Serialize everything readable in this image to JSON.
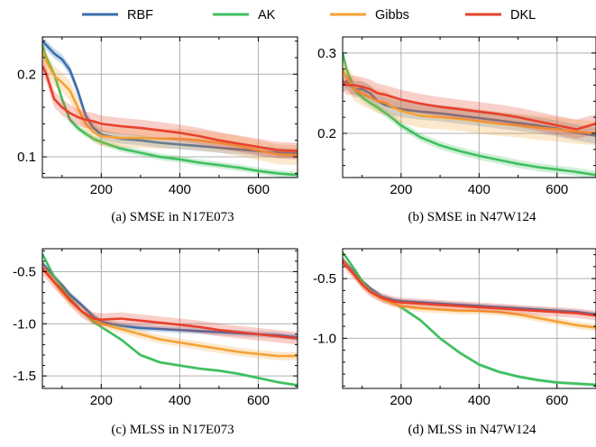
{
  "legend": [
    {
      "name": "RBF",
      "color": "#3b6fae"
    },
    {
      "name": "AK",
      "color": "#3fbf5f"
    },
    {
      "name": "Gibbs",
      "color": "#f5a235"
    },
    {
      "name": "DKL",
      "color": "#e8412c"
    }
  ],
  "chart_data": [
    {
      "type": "line",
      "caption": "(a) SMSE in N17E073",
      "xlim": [
        50,
        700
      ],
      "ylim": [
        0.075,
        0.245
      ],
      "xticks": [
        200,
        400,
        600
      ],
      "yticks": [
        0.1,
        0.2
      ],
      "ytick_labels": [
        "0.1",
        "0.2"
      ],
      "grid": true,
      "series": [
        {
          "name": "RBF",
          "x": [
            50,
            60,
            80,
            100,
            120,
            140,
            160,
            180,
            200,
            250,
            300,
            350,
            400,
            450,
            500,
            550,
            600,
            650,
            700
          ],
          "y": [
            0.24,
            0.235,
            0.225,
            0.218,
            0.205,
            0.18,
            0.15,
            0.135,
            0.127,
            0.122,
            0.12,
            0.117,
            0.115,
            0.113,
            0.111,
            0.109,
            0.107,
            0.105,
            0.104
          ],
          "band": 0.006
        },
        {
          "name": "AK",
          "x": [
            50,
            60,
            80,
            100,
            120,
            140,
            160,
            180,
            200,
            250,
            300,
            350,
            400,
            450,
            500,
            550,
            600,
            650,
            700
          ],
          "y": [
            0.235,
            0.22,
            0.2,
            0.17,
            0.145,
            0.135,
            0.128,
            0.122,
            0.118,
            0.11,
            0.105,
            0.1,
            0.097,
            0.093,
            0.09,
            0.087,
            0.083,
            0.08,
            0.078
          ],
          "band": 0.004
        },
        {
          "name": "Gibbs",
          "x": [
            50,
            60,
            80,
            100,
            120,
            140,
            160,
            180,
            200,
            250,
            300,
            350,
            400,
            450,
            500,
            550,
            600,
            650,
            700
          ],
          "y": [
            0.228,
            0.215,
            0.198,
            0.19,
            0.18,
            0.16,
            0.14,
            0.13,
            0.125,
            0.123,
            0.123,
            0.122,
            0.122,
            0.12,
            0.117,
            0.113,
            0.108,
            0.103,
            0.102
          ],
          "band": 0.012
        },
        {
          "name": "DKL",
          "x": [
            50,
            60,
            80,
            100,
            120,
            140,
            160,
            180,
            200,
            250,
            300,
            350,
            400,
            450,
            500,
            550,
            600,
            650,
            700
          ],
          "y": [
            0.21,
            0.2,
            0.17,
            0.16,
            0.153,
            0.148,
            0.145,
            0.143,
            0.14,
            0.137,
            0.135,
            0.132,
            0.129,
            0.125,
            0.12,
            0.116,
            0.112,
            0.108,
            0.107
          ],
          "band": 0.01
        }
      ]
    },
    {
      "type": "line",
      "caption": "(b) SMSE in N47W124",
      "xlim": [
        50,
        700
      ],
      "ylim": [
        0.145,
        0.32
      ],
      "xticks": [
        200,
        400,
        600
      ],
      "yticks": [
        0.2,
        0.3
      ],
      "ytick_labels": [
        "0.2",
        "0.3"
      ],
      "grid": true,
      "series": [
        {
          "name": "RBF",
          "x": [
            50,
            60,
            80,
            100,
            120,
            140,
            160,
            180,
            200,
            250,
            300,
            350,
            400,
            450,
            500,
            550,
            600,
            650,
            700
          ],
          "y": [
            0.26,
            0.265,
            0.255,
            0.255,
            0.25,
            0.24,
            0.235,
            0.232,
            0.23,
            0.227,
            0.225,
            0.222,
            0.219,
            0.216,
            0.213,
            0.21,
            0.206,
            0.201,
            0.197
          ],
          "band": 0.01
        },
        {
          "name": "AK",
          "x": [
            50,
            60,
            80,
            100,
            120,
            140,
            160,
            180,
            200,
            250,
            300,
            350,
            400,
            450,
            500,
            550,
            600,
            650,
            700
          ],
          "y": [
            0.3,
            0.28,
            0.255,
            0.245,
            0.238,
            0.232,
            0.225,
            0.218,
            0.21,
            0.195,
            0.185,
            0.178,
            0.172,
            0.167,
            0.162,
            0.158,
            0.155,
            0.152,
            0.148
          ],
          "band": 0.005
        },
        {
          "name": "Gibbs",
          "x": [
            50,
            60,
            80,
            100,
            120,
            140,
            160,
            180,
            200,
            250,
            300,
            350,
            400,
            450,
            500,
            550,
            600,
            650,
            700
          ],
          "y": [
            0.28,
            0.27,
            0.255,
            0.25,
            0.245,
            0.24,
            0.238,
            0.232,
            0.228,
            0.222,
            0.22,
            0.218,
            0.215,
            0.212,
            0.21,
            0.207,
            0.205,
            0.202,
            0.2
          ],
          "band": 0.015
        },
        {
          "name": "DKL",
          "x": [
            50,
            60,
            80,
            100,
            120,
            140,
            160,
            180,
            200,
            250,
            300,
            350,
            400,
            450,
            500,
            550,
            600,
            650,
            700
          ],
          "y": [
            0.265,
            0.26,
            0.26,
            0.258,
            0.255,
            0.25,
            0.248,
            0.245,
            0.242,
            0.237,
            0.233,
            0.23,
            0.227,
            0.224,
            0.22,
            0.215,
            0.21,
            0.205,
            0.212
          ],
          "band": 0.012
        }
      ]
    },
    {
      "type": "line",
      "caption": "(c) MLSS in N17E073",
      "xlim": [
        50,
        700
      ],
      "ylim": [
        -1.62,
        -0.28
      ],
      "xticks": [
        200,
        400,
        600
      ],
      "yticks": [
        -0.5,
        -1.0,
        -1.5
      ],
      "ytick_labels": [
        "-0.5",
        "-1.0",
        "-1.5"
      ],
      "grid": true,
      "series": [
        {
          "name": "RBF",
          "x": [
            50,
            80,
            100,
            120,
            150,
            180,
            200,
            250,
            300,
            350,
            400,
            450,
            500,
            550,
            600,
            650,
            700
          ],
          "y": [
            -0.42,
            -0.55,
            -0.63,
            -0.72,
            -0.82,
            -0.93,
            -0.98,
            -1.02,
            -1.04,
            -1.05,
            -1.06,
            -1.07,
            -1.08,
            -1.09,
            -1.1,
            -1.11,
            -1.13
          ],
          "band": 0.03
        },
        {
          "name": "AK",
          "x": [
            50,
            80,
            100,
            120,
            150,
            180,
            200,
            250,
            300,
            350,
            400,
            450,
            500,
            550,
            600,
            650,
            700
          ],
          "y": [
            -0.33,
            -0.55,
            -0.65,
            -0.75,
            -0.88,
            -0.98,
            -1.03,
            -1.15,
            -1.3,
            -1.37,
            -1.4,
            -1.43,
            -1.45,
            -1.48,
            -1.52,
            -1.56,
            -1.59
          ],
          "band": 0.015
        },
        {
          "name": "Gibbs",
          "x": [
            50,
            80,
            100,
            120,
            150,
            180,
            200,
            250,
            300,
            350,
            400,
            450,
            500,
            550,
            600,
            650,
            700
          ],
          "y": [
            -0.45,
            -0.6,
            -0.7,
            -0.78,
            -0.88,
            -0.96,
            -1.0,
            -1.05,
            -1.1,
            -1.15,
            -1.18,
            -1.21,
            -1.24,
            -1.27,
            -1.29,
            -1.31,
            -1.31
          ],
          "band": 0.04
        },
        {
          "name": "DKL",
          "x": [
            50,
            80,
            100,
            120,
            150,
            180,
            200,
            250,
            300,
            350,
            400,
            450,
            500,
            550,
            600,
            650,
            700
          ],
          "y": [
            -0.47,
            -0.6,
            -0.68,
            -0.77,
            -0.88,
            -0.95,
            -0.96,
            -0.95,
            -0.97,
            -0.99,
            -1.01,
            -1.03,
            -1.06,
            -1.08,
            -1.1,
            -1.12,
            -1.14
          ],
          "band": 0.06
        }
      ]
    },
    {
      "type": "line",
      "caption": "(d) MLSS in N47W124",
      "xlim": [
        50,
        700
      ],
      "ylim": [
        -1.42,
        -0.25
      ],
      "xticks": [
        200,
        400,
        600
      ],
      "yticks": [
        -0.5,
        -1.0
      ],
      "ytick_labels": [
        "-0.5",
        "-1.0"
      ],
      "grid": true,
      "series": [
        {
          "name": "RBF",
          "x": [
            50,
            80,
            100,
            120,
            150,
            180,
            200,
            250,
            300,
            350,
            400,
            450,
            500,
            550,
            600,
            650,
            700
          ],
          "y": [
            -0.34,
            -0.45,
            -0.52,
            -0.58,
            -0.65,
            -0.68,
            -0.69,
            -0.7,
            -0.71,
            -0.72,
            -0.73,
            -0.74,
            -0.75,
            -0.76,
            -0.77,
            -0.78,
            -0.8
          ],
          "band": 0.02
        },
        {
          "name": "AK",
          "x": [
            50,
            80,
            100,
            120,
            150,
            180,
            200,
            250,
            300,
            350,
            400,
            450,
            500,
            550,
            600,
            650,
            700
          ],
          "y": [
            -0.28,
            -0.42,
            -0.52,
            -0.6,
            -0.66,
            -0.7,
            -0.74,
            -0.85,
            -1.0,
            -1.12,
            -1.22,
            -1.28,
            -1.32,
            -1.35,
            -1.37,
            -1.38,
            -1.39
          ],
          "band": 0.015
        },
        {
          "name": "Gibbs",
          "x": [
            50,
            80,
            100,
            120,
            150,
            180,
            200,
            250,
            300,
            350,
            400,
            450,
            500,
            550,
            600,
            650,
            700
          ],
          "y": [
            -0.35,
            -0.47,
            -0.55,
            -0.61,
            -0.67,
            -0.71,
            -0.73,
            -0.75,
            -0.76,
            -0.77,
            -0.77,
            -0.78,
            -0.8,
            -0.83,
            -0.86,
            -0.89,
            -0.91
          ],
          "band": 0.03
        },
        {
          "name": "DKL",
          "x": [
            50,
            80,
            100,
            120,
            150,
            180,
            200,
            250,
            300,
            350,
            400,
            450,
            500,
            550,
            600,
            650,
            700
          ],
          "y": [
            -0.36,
            -0.47,
            -0.55,
            -0.61,
            -0.66,
            -0.69,
            -0.7,
            -0.71,
            -0.72,
            -0.73,
            -0.74,
            -0.75,
            -0.76,
            -0.77,
            -0.78,
            -0.79,
            -0.81
          ],
          "band": 0.04
        }
      ]
    }
  ]
}
